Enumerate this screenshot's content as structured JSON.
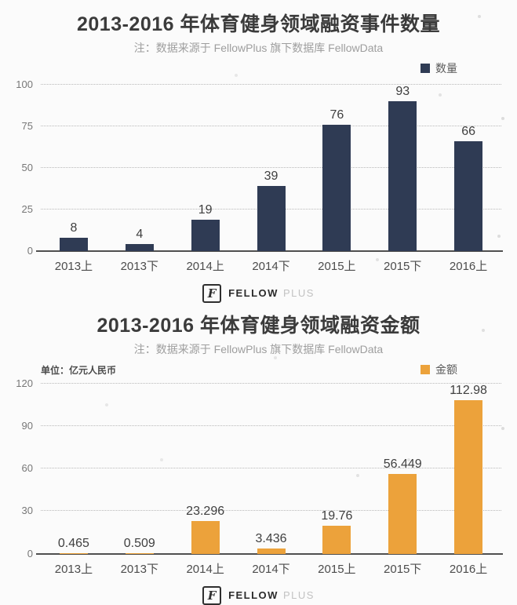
{
  "logo": {
    "glyph": "F",
    "name": "FELLOW",
    "suffix": "PLUS"
  },
  "chart_data": [
    {
      "type": "bar",
      "title": "2013-2016 年体育健身领域融资事件数量",
      "subtitle": "注：数据来源于 FellowPlus 旗下数据库 FellowData",
      "legend": "数量",
      "legend_position": "top-right",
      "unit_label": "",
      "categories": [
        "2013上",
        "2013下",
        "2014上",
        "2014下",
        "2015上",
        "2015下",
        "2016上"
      ],
      "values": [
        8,
        4,
        19,
        39,
        76,
        93,
        66
      ],
      "value_labels": [
        "8",
        "4",
        "19",
        "39",
        "76",
        "93",
        "66"
      ],
      "yticks": [
        0,
        25,
        50,
        75,
        100
      ],
      "ylim": [
        0,
        100
      ],
      "xlabel": "",
      "ylabel": "",
      "grid": "horizontal-dotted",
      "bar_color": "#2f3b54"
    },
    {
      "type": "bar",
      "title": "2013-2016 年体育健身领域融资金额",
      "subtitle": "注：数据来源于 FellowPlus 旗下数据库 FellowData",
      "legend": "金额",
      "legend_position": "top-right",
      "unit_label": "单位：亿元人民币",
      "categories": [
        "2013上",
        "2013下",
        "2014上",
        "2014下",
        "2015上",
        "2015下",
        "2016上"
      ],
      "values": [
        0.465,
        0.509,
        23.296,
        3.436,
        19.76,
        56.449,
        112.98
      ],
      "value_labels": [
        "0.465",
        "0.509",
        "23.296",
        "3.436",
        "19.76",
        "56.449",
        "112.98"
      ],
      "yticks": [
        0,
        30,
        60,
        90,
        120
      ],
      "ylim": [
        0,
        120
      ],
      "xlabel": "",
      "ylabel": "",
      "grid": "horizontal-dotted",
      "bar_color": "#eca23b"
    }
  ]
}
